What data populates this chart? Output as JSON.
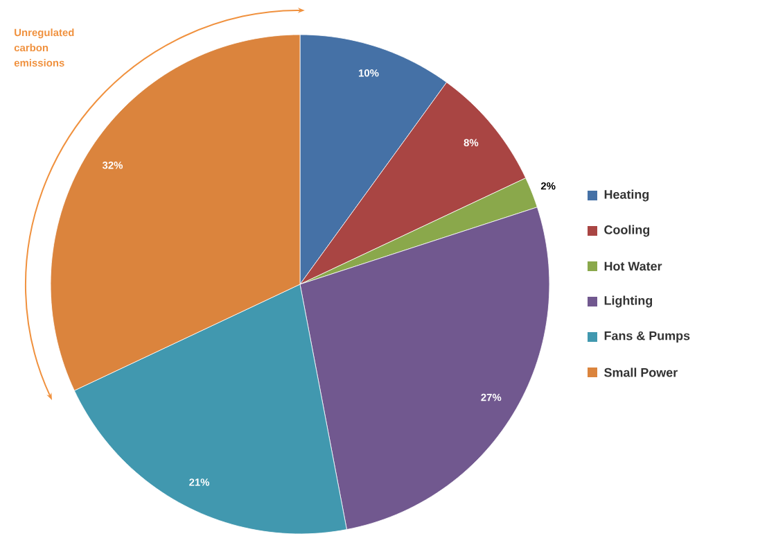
{
  "chart_data": {
    "type": "pie",
    "categories": [
      "Heating",
      "Cooling",
      "Hot Water",
      "Lighting",
      "Fans & Pumps",
      "Small Power"
    ],
    "values": [
      10,
      8,
      2,
      27,
      21,
      32
    ],
    "value_labels": [
      "10%",
      "8%",
      "2%",
      "27%",
      "21%",
      "32%"
    ],
    "colors": [
      "#4571a6",
      "#a94543",
      "#8aa84b",
      "#71588f",
      "#4198af",
      "#db843d"
    ],
    "legend": "right",
    "annotations": [
      "Unregulated carbon emissions"
    ]
  }
}
